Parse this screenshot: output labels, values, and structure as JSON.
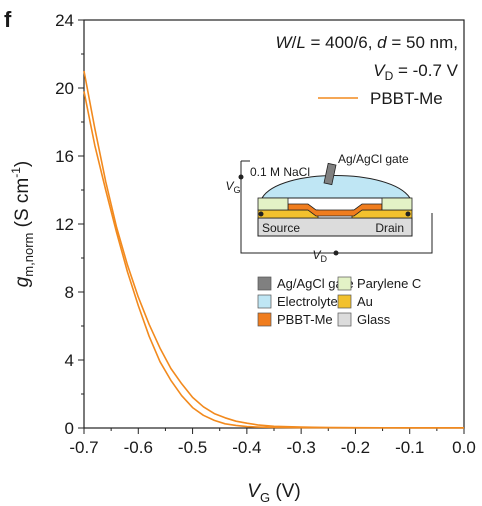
{
  "panel_label": "f",
  "annotations": {
    "line1": {
      "w": "W",
      "slash": "/",
      "l": "L",
      "rest": " = 400/6, ",
      "d": "d",
      "drest": " = 50 nm,"
    },
    "line2": {
      "v": "V",
      "sub": "D",
      "rest": " = -0.7 V"
    }
  },
  "axes": {
    "x": {
      "main": "V",
      "sub": "G",
      "unit": " (V)"
    },
    "y": {
      "g": "g",
      "sub": "m,norm",
      "unit": " (S cm",
      "sup": "-1",
      "close": ")"
    }
  },
  "inset": {
    "nacl": "0.1 M NaCl",
    "gate": "Ag/AgCl gate",
    "vg": {
      "v": "V",
      "sub": "G"
    },
    "vd": {
      "v": "V",
      "sub": "D"
    },
    "source": "Source",
    "drain": "Drain"
  },
  "inset_legend": [
    {
      "label": "Ag/AgCl gate",
      "color": "#808080"
    },
    {
      "label": "Parylene C",
      "color": "#e3f2c6"
    },
    {
      "label": "Electrolyte",
      "color": "#bfe6f4"
    },
    {
      "label": "Au",
      "color": "#f2c12e"
    },
    {
      "label": "PBBT-Me",
      "color": "#f07d1e"
    },
    {
      "label": "Glass",
      "color": "#dcdcdc"
    }
  ],
  "chart_data": {
    "type": "line",
    "xlabel": "VG (V)",
    "ylabel": "gm,norm (S cm-1)",
    "xlim": [
      -0.7,
      0.0
    ],
    "ylim": [
      0,
      24
    ],
    "xticks": [
      "-0.7",
      "-0.6",
      "-0.5",
      "-0.4",
      "-0.3",
      "-0.2",
      "-0.1",
      "0.0"
    ],
    "yticks": [
      "0",
      "4",
      "8",
      "12",
      "16",
      "20",
      "24"
    ],
    "legend_position": "top-right",
    "series": [
      {
        "name": "PBBT-Me",
        "color": "#f28a1e",
        "x": [
          -0.7,
          -0.68,
          -0.66,
          -0.64,
          -0.62,
          -0.6,
          -0.58,
          -0.56,
          -0.54,
          -0.52,
          -0.5,
          -0.48,
          -0.46,
          -0.44,
          -0.42,
          -0.4,
          -0.38,
          -0.35,
          -0.3,
          -0.25,
          -0.2,
          -0.1,
          0.0
        ],
        "y": [
          19.8,
          16.6,
          14.0,
          11.5,
          9.2,
          7.2,
          5.4,
          3.9,
          2.8,
          1.9,
          1.2,
          0.75,
          0.45,
          0.25,
          0.15,
          0.08,
          0.05,
          0.03,
          0.02,
          0.02,
          0.01,
          0.01,
          0.01
        ]
      },
      {
        "name": "",
        "color": "#f28a1e",
        "x": [
          -0.7,
          -0.68,
          -0.66,
          -0.64,
          -0.62,
          -0.6,
          -0.58,
          -0.56,
          -0.54,
          -0.52,
          -0.5,
          -0.48,
          -0.46,
          -0.44,
          -0.42,
          -0.4,
          -0.38,
          -0.35,
          -0.3,
          -0.25,
          -0.2,
          -0.1,
          0.0
        ],
        "y": [
          21.0,
          17.6,
          14.5,
          11.8,
          9.6,
          7.7,
          6.1,
          4.7,
          3.5,
          2.6,
          1.8,
          1.25,
          0.85,
          0.6,
          0.4,
          0.28,
          0.18,
          0.1,
          0.05,
          0.03,
          0.02,
          0.01,
          0.01
        ]
      }
    ]
  }
}
